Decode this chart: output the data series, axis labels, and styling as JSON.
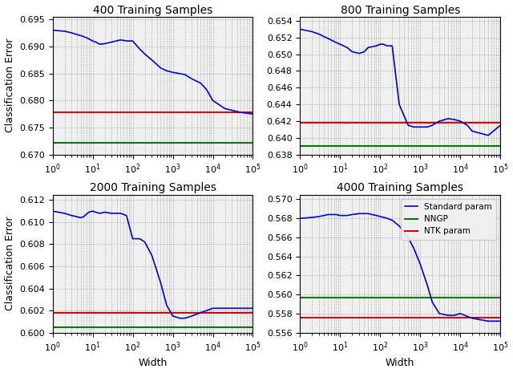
{
  "panels": [
    {
      "title": "400 Training Samples",
      "ylim": [
        0.67,
        0.6955
      ],
      "yticks": [
        0.67,
        0.675,
        0.68,
        0.685,
        0.69,
        0.695
      ],
      "nngp_line": 0.6722,
      "ntk_line": 0.6778,
      "blue_x": [
        1,
        2,
        3,
        4,
        5,
        6,
        7,
        8,
        10,
        12,
        15,
        20,
        30,
        50,
        70,
        100,
        150,
        200,
        300,
        500,
        700,
        1000,
        2000,
        3000,
        5000,
        7000,
        10000,
        20000,
        50000,
        100000
      ],
      "blue_y": [
        0.693,
        0.6928,
        0.6925,
        0.6922,
        0.692,
        0.6918,
        0.6916,
        0.6914,
        0.691,
        0.6908,
        0.6904,
        0.6905,
        0.6908,
        0.6912,
        0.691,
        0.691,
        0.6895,
        0.6886,
        0.6875,
        0.686,
        0.6855,
        0.6852,
        0.6848,
        0.684,
        0.6832,
        0.682,
        0.68,
        0.6785,
        0.6778,
        0.6775
      ],
      "show_xlabel": false,
      "show_ylabel": true,
      "show_legend": false
    },
    {
      "title": "800 Training Samples",
      "ylim": [
        0.638,
        0.6545
      ],
      "yticks": [
        0.638,
        0.64,
        0.642,
        0.644,
        0.646,
        0.648,
        0.65,
        0.652,
        0.654
      ],
      "nngp_line": 0.639,
      "ntk_line": 0.6418,
      "blue_x": [
        1,
        2,
        3,
        4,
        5,
        6,
        8,
        10,
        15,
        20,
        25,
        30,
        40,
        50,
        80,
        100,
        120,
        150,
        200,
        300,
        500,
        700,
        1000,
        1500,
        2000,
        3000,
        5000,
        7000,
        10000,
        15000,
        20000,
        50000,
        100000
      ],
      "blue_y": [
        0.653,
        0.6527,
        0.6524,
        0.6521,
        0.6519,
        0.6517,
        0.6514,
        0.6512,
        0.6508,
        0.6503,
        0.6502,
        0.6501,
        0.6503,
        0.6508,
        0.651,
        0.6512,
        0.6512,
        0.651,
        0.651,
        0.644,
        0.6415,
        0.6413,
        0.6413,
        0.6413,
        0.6415,
        0.642,
        0.6423,
        0.6422,
        0.642,
        0.6415,
        0.6408,
        0.6403,
        0.6415
      ],
      "show_xlabel": false,
      "show_ylabel": false,
      "show_legend": false
    },
    {
      "title": "2000 Training Samples",
      "ylim": [
        0.6,
        0.6125
      ],
      "yticks": [
        0.6,
        0.602,
        0.604,
        0.606,
        0.608,
        0.61,
        0.612
      ],
      "nngp_line": 0.6005,
      "ntk_line": 0.6018,
      "blue_x": [
        1,
        2,
        3,
        4,
        5,
        6,
        8,
        10,
        12,
        15,
        20,
        30,
        50,
        70,
        100,
        150,
        200,
        300,
        500,
        700,
        1000,
        1500,
        2000,
        3000,
        5000,
        10000,
        50000,
        100000
      ],
      "blue_y": [
        0.611,
        0.6108,
        0.6106,
        0.6105,
        0.6104,
        0.6105,
        0.6109,
        0.611,
        0.6109,
        0.6108,
        0.6109,
        0.6108,
        0.6108,
        0.6106,
        0.6085,
        0.6085,
        0.6082,
        0.607,
        0.6045,
        0.6025,
        0.6015,
        0.6013,
        0.6013,
        0.6015,
        0.6018,
        0.6022,
        0.6022,
        0.6022
      ],
      "show_xlabel": true,
      "show_ylabel": true,
      "show_legend": false
    },
    {
      "title": "4000 Training Samples",
      "ylim": [
        0.556,
        0.5705
      ],
      "yticks": [
        0.556,
        0.558,
        0.56,
        0.562,
        0.564,
        0.566,
        0.568,
        0.57
      ],
      "nngp_line": 0.5597,
      "ntk_line": 0.5576,
      "blue_x": [
        1,
        2,
        3,
        4,
        5,
        6,
        8,
        10,
        15,
        20,
        30,
        50,
        80,
        100,
        150,
        200,
        300,
        500,
        700,
        1000,
        1500,
        2000,
        3000,
        5000,
        7000,
        10000,
        15000,
        20000,
        50000,
        100000
      ],
      "blue_y": [
        0.568,
        0.5681,
        0.5682,
        0.5683,
        0.5684,
        0.5684,
        0.5684,
        0.5683,
        0.5683,
        0.5684,
        0.5685,
        0.5685,
        0.5683,
        0.5682,
        0.568,
        0.5678,
        0.5672,
        0.566,
        0.5648,
        0.5632,
        0.561,
        0.5592,
        0.558,
        0.5578,
        0.5578,
        0.558,
        0.5577,
        0.5575,
        0.5572,
        0.5572
      ],
      "show_xlabel": true,
      "show_ylabel": false,
      "show_legend": true
    }
  ],
  "blue_color": "#0000cc",
  "green_color": "#007700",
  "red_color": "#cc0000",
  "ntk_linestyle": "-",
  "legend_labels": [
    "Standard param",
    "NNGP",
    "NTK param"
  ],
  "xlabel": "Width",
  "ylabel": "Classification Error",
  "fig_width": 6.4,
  "fig_height": 4.65,
  "background_color": "#f0f0f0"
}
